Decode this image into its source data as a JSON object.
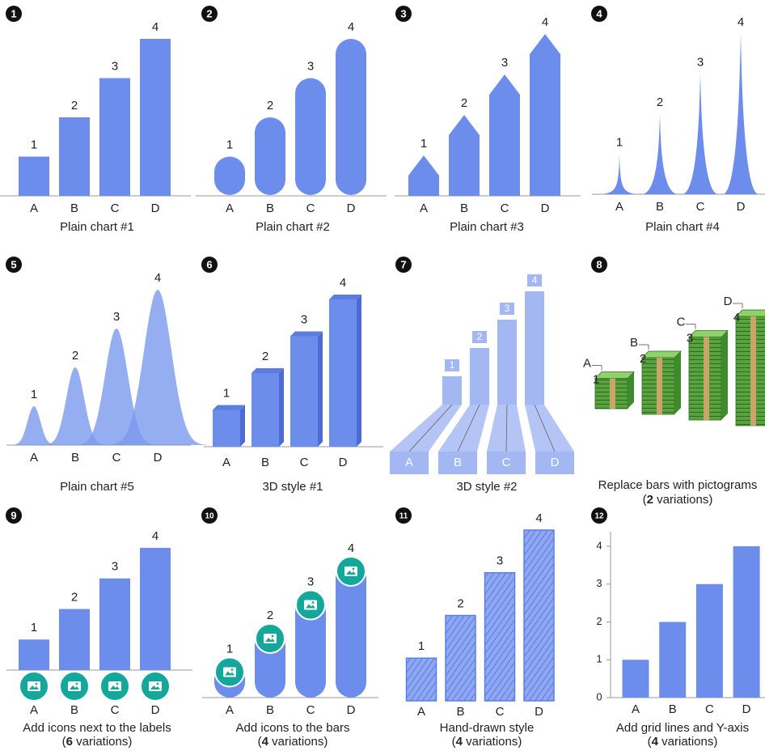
{
  "chart_data": [
    {
      "type": "bar",
      "badge": "1",
      "title": "Plain chart #1",
      "categories": [
        "A",
        "B",
        "C",
        "D"
      ],
      "values": [
        1,
        2,
        3,
        4
      ],
      "ylim": [
        0,
        4
      ],
      "color": "#6d8dec"
    },
    {
      "type": "rounded-bar",
      "badge": "2",
      "title": "Plain chart #2",
      "categories": [
        "A",
        "B",
        "C",
        "D"
      ],
      "values": [
        1,
        2,
        3,
        4
      ],
      "ylim": [
        0,
        4
      ],
      "color": "#6d8dec"
    },
    {
      "type": "arrow-bar",
      "badge": "3",
      "title": "Plain chart #3",
      "categories": [
        "A",
        "B",
        "C",
        "D"
      ],
      "values": [
        1,
        2,
        3,
        4
      ],
      "ylim": [
        0,
        4
      ],
      "color": "#6d8dec"
    },
    {
      "type": "spike",
      "badge": "4",
      "title": "Plain chart #4",
      "categories": [
        "A",
        "B",
        "C",
        "D"
      ],
      "values": [
        1,
        2,
        3,
        4
      ],
      "ylim": [
        0,
        4
      ],
      "color": "#6d8dec"
    },
    {
      "type": "bell",
      "badge": "5",
      "title": "Plain chart #5",
      "categories": [
        "A",
        "B",
        "C",
        "D"
      ],
      "values": [
        1,
        2,
        3,
        4
      ],
      "ylim": [
        0,
        4
      ],
      "color": "#7b98ee"
    },
    {
      "type": "bar-3d",
      "badge": "6",
      "title": "3D style #1",
      "categories": [
        "A",
        "B",
        "C",
        "D"
      ],
      "values": [
        1,
        2,
        3,
        4
      ],
      "ylim": [
        0,
        4
      ],
      "color": "#6d8dec"
    },
    {
      "type": "bar-3d-floor",
      "badge": "7",
      "title": "3D style #2",
      "categories": [
        "A",
        "B",
        "C",
        "D"
      ],
      "values": [
        1,
        2,
        3,
        4
      ],
      "ylim": [
        0,
        4
      ],
      "color": "#a3b7f3"
    },
    {
      "type": "pictogram",
      "badge": "8",
      "title": "Replace bars with pictograms",
      "note": [
        "(",
        "2",
        " variations)"
      ],
      "categories": [
        "A",
        "B",
        "C",
        "D"
      ],
      "values": [
        1,
        2,
        3,
        4
      ],
      "ylim": [
        0,
        4
      ],
      "color": "#4f9a3a"
    },
    {
      "type": "bar-icon-labels",
      "badge": "9",
      "title": "Add icons next to the labels",
      "note": [
        "(",
        "6",
        " variations)"
      ],
      "categories": [
        "A",
        "B",
        "C",
        "D"
      ],
      "values": [
        1,
        2,
        3,
        4
      ],
      "ylim": [
        0,
        4
      ],
      "color": "#6d8dec"
    },
    {
      "type": "bar-icon-top",
      "badge": "10",
      "title": "Add icons to the bars",
      "note": [
        "(",
        "4",
        " variations)"
      ],
      "categories": [
        "A",
        "B",
        "C",
        "D"
      ],
      "values": [
        1,
        2,
        3,
        4
      ],
      "ylim": [
        0,
        4
      ],
      "color": "#6d8dec"
    },
    {
      "type": "hand-drawn",
      "badge": "11",
      "title": "Hand-drawn style",
      "note": [
        "(",
        "4",
        " variations)"
      ],
      "categories": [
        "A",
        "B",
        "C",
        "D"
      ],
      "values": [
        1,
        2,
        3,
        4
      ],
      "ylim": [
        0,
        4
      ],
      "color": "#6d8dec"
    },
    {
      "type": "bar-axis",
      "badge": "12",
      "title": "Add grid lines and Y-axis",
      "note": [
        "(",
        "4",
        " variations)"
      ],
      "categories": [
        "A",
        "B",
        "C",
        "D"
      ],
      "values": [
        1,
        2,
        3,
        4
      ],
      "ylim": [
        0,
        4
      ],
      "yticks": [
        0,
        1,
        2,
        3,
        4
      ],
      "color": "#6d8dec"
    }
  ]
}
